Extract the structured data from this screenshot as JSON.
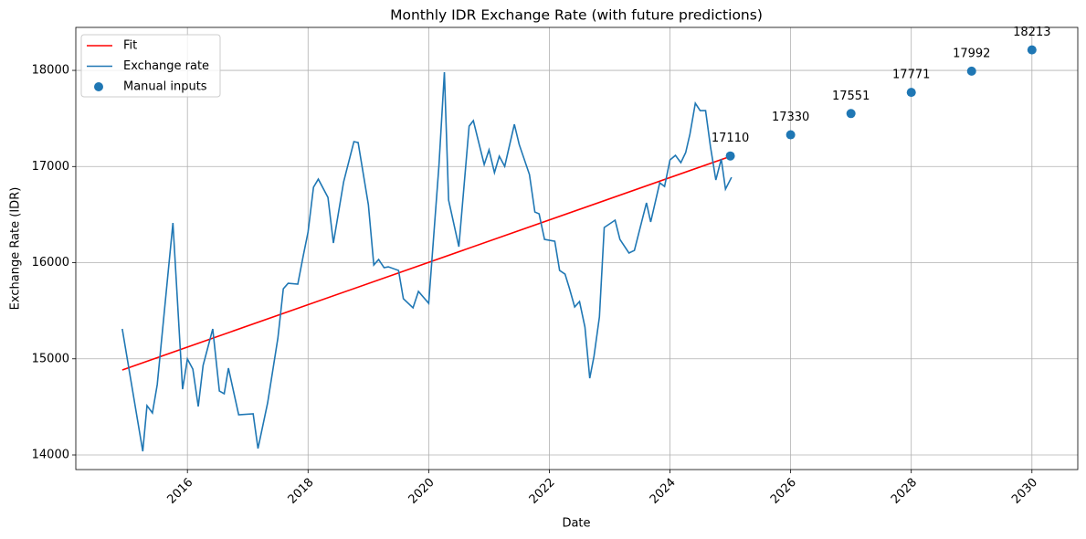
{
  "chart_data": {
    "type": "line",
    "title": "Monthly IDR Exchange Rate (with future predictions)",
    "xlabel": "Date",
    "ylabel": "Exchange Rate (IDR)",
    "xlim": [
      2014.15,
      2030.76
    ],
    "ylim": [
      13848,
      18447
    ],
    "xticks": [
      2016,
      2018,
      2020,
      2022,
      2024,
      2026,
      2028,
      2030
    ],
    "yticks": [
      14000,
      15000,
      16000,
      17000,
      18000
    ],
    "grid": true,
    "legend": "upper left",
    "series": [
      {
        "name": "Fit",
        "type": "line",
        "color": "#ff0000",
        "x": [
          2014.92,
          2025.02
        ],
        "values": [
          14884,
          17110
        ]
      },
      {
        "name": "Exchange rate",
        "type": "line",
        "color": "#1f77b4",
        "x": [
          2014.92,
          2015.26,
          2015.33,
          2015.42,
          2015.5,
          2015.76,
          2015.92,
          2016.0,
          2016.09,
          2016.18,
          2016.26,
          2016.42,
          2016.53,
          2016.61,
          2016.68,
          2016.85,
          2017.09,
          2017.17,
          2017.33,
          2017.5,
          2017.59,
          2017.67,
          2017.83,
          2017.92,
          2018.0,
          2018.09,
          2018.17,
          2018.33,
          2018.42,
          2018.59,
          2018.76,
          2018.83,
          2019.0,
          2019.09,
          2019.17,
          2019.26,
          2019.33,
          2019.5,
          2019.58,
          2019.74,
          2019.83,
          2020.0,
          2020.17,
          2020.26,
          2020.33,
          2020.5,
          2020.67,
          2020.74,
          2020.92,
          2021.0,
          2021.09,
          2021.17,
          2021.26,
          2021.42,
          2021.5,
          2021.67,
          2021.76,
          2021.83,
          2021.92,
          2022.09,
          2022.17,
          2022.26,
          2022.33,
          2022.42,
          2022.5,
          2022.59,
          2022.67,
          2022.74,
          2022.83,
          2022.91,
          2023.09,
          2023.17,
          2023.32,
          2023.41,
          2023.61,
          2023.68,
          2023.83,
          2023.91,
          2024.0,
          2024.09,
          2024.18,
          2024.26,
          2024.33,
          2024.42,
          2024.5,
          2024.59,
          2024.67,
          2024.76,
          2024.85,
          2024.92,
          2025.02
        ],
        "values": [
          15311,
          14038,
          14513,
          14437,
          14732,
          16413,
          14684,
          14998,
          14893,
          14504,
          14931,
          15311,
          14665,
          14637,
          14903,
          14418,
          14428,
          14067,
          14542,
          15216,
          15729,
          15786,
          15777,
          16071,
          16318,
          16784,
          16869,
          16679,
          16204,
          16841,
          17259,
          17249,
          16603,
          15976,
          16033,
          15948,
          15957,
          15919,
          15625,
          15530,
          15701,
          15577,
          17012,
          17981,
          16651,
          16166,
          17420,
          17477,
          17021,
          17173,
          16936,
          17107,
          17002,
          17439,
          17230,
          16917,
          16527,
          16508,
          16242,
          16223,
          15919,
          15881,
          15739,
          15539,
          15596,
          15330,
          14798,
          15026,
          15435,
          16366,
          16442,
          16242,
          16100,
          16128,
          16622,
          16423,
          16831,
          16793,
          17069,
          17116,
          17040,
          17145,
          17335,
          17658,
          17582,
          17582,
          17211,
          16860,
          17078,
          16765,
          16888
        ]
      },
      {
        "name": "Manual inputs",
        "type": "scatter",
        "color": "#1f77b4",
        "x": [
          2025,
          2026,
          2027,
          2028,
          2029,
          2030
        ],
        "values": [
          17110,
          17330,
          17551,
          17771,
          17992,
          18213
        ]
      }
    ]
  }
}
